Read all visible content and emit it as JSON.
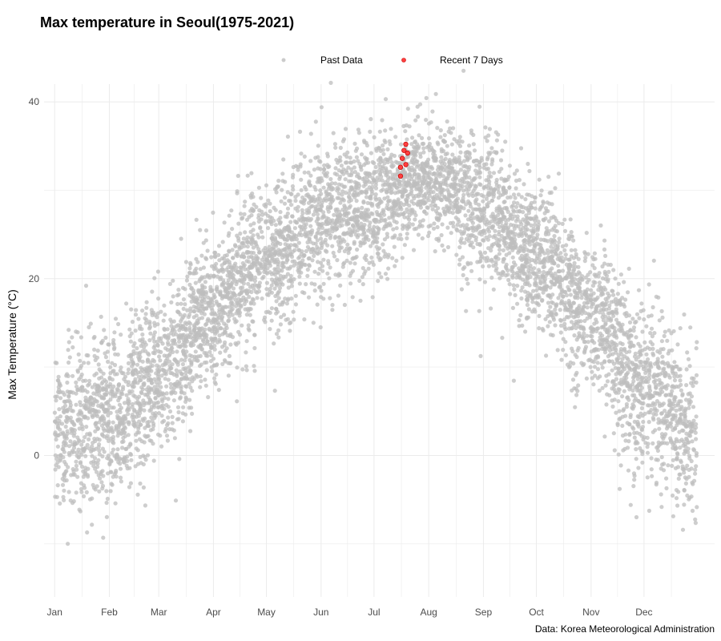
{
  "chart_data": {
    "type": "scatter",
    "title": "Max temperature in Seoul(1975-2021)",
    "xlabel": "",
    "ylabel": "Max Temperature (°C)",
    "ylim": [
      -16,
      42
    ],
    "yticks": [
      0,
      20,
      40
    ],
    "xlim": [
      -5,
      375
    ],
    "month_ticks": [
      {
        "label": "Jan",
        "day": 1
      },
      {
        "label": "Feb",
        "day": 32
      },
      {
        "label": "Mar",
        "day": 60
      },
      {
        "label": "Apr",
        "day": 91
      },
      {
        "label": "May",
        "day": 121
      },
      {
        "label": "Jun",
        "day": 152
      },
      {
        "label": "Jul",
        "day": 182
      },
      {
        "label": "Aug",
        "day": 213
      },
      {
        "label": "Sep",
        "day": 244
      },
      {
        "label": "Oct",
        "day": 274
      },
      {
        "label": "Nov",
        "day": 305
      },
      {
        "label": "Dec",
        "day": 335
      }
    ],
    "grid": true,
    "legend_position": "top",
    "series": [
      {
        "name": "Past Data",
        "color": "#bebebe",
        "years": "1975-2021",
        "seasonal_mean_curve": [
          {
            "day": 1,
            "max_temp": 2.5
          },
          {
            "day": 32,
            "max_temp": 4.0
          },
          {
            "day": 60,
            "max_temp": 9.0
          },
          {
            "day": 91,
            "max_temp": 16.5
          },
          {
            "day": 121,
            "max_temp": 22.5
          },
          {
            "day": 152,
            "max_temp": 27.0
          },
          {
            "day": 182,
            "max_temp": 28.5
          },
          {
            "day": 213,
            "max_temp": 31.5
          },
          {
            "day": 244,
            "max_temp": 28.0
          },
          {
            "day": 274,
            "max_temp": 22.5
          },
          {
            "day": 305,
            "max_temp": 15.5
          },
          {
            "day": 335,
            "max_temp": 7.5
          },
          {
            "day": 365,
            "max_temp": 2.5
          }
        ],
        "typical_spread": 4.0
      },
      {
        "name": "Recent 7 Days",
        "color": "#ff0000",
        "points": [
          {
            "day": 197,
            "max_temp": 31.6
          },
          {
            "day": 197,
            "max_temp": 32.6
          },
          {
            "day": 198,
            "max_temp": 33.6
          },
          {
            "day": 199,
            "max_temp": 34.5
          },
          {
            "day": 200,
            "max_temp": 35.2
          },
          {
            "day": 200,
            "max_temp": 32.9
          },
          {
            "day": 201,
            "max_temp": 34.2
          }
        ]
      }
    ],
    "caption": "Data: Korea Meteorological Administration"
  }
}
